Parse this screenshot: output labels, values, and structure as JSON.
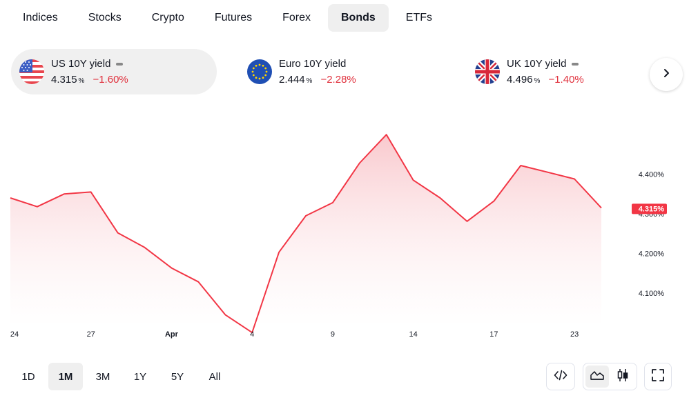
{
  "tabs": [
    {
      "label": "Indices"
    },
    {
      "label": "Stocks"
    },
    {
      "label": "Crypto"
    },
    {
      "label": "Futures"
    },
    {
      "label": "Forex"
    },
    {
      "label": "Bonds",
      "active": true
    },
    {
      "label": "ETFs"
    }
  ],
  "quotes": [
    {
      "name": "US 10Y yield",
      "value": "4.315",
      "unit": "%",
      "change": "−1.60%",
      "flag": "us-flag-icon",
      "active": true
    },
    {
      "name": "Euro 10Y yield",
      "value": "2.444",
      "unit": "%",
      "change": "−2.28%",
      "flag": "eu-flag-icon"
    },
    {
      "name": "UK 10Y yield",
      "value": "4.496",
      "unit": "%",
      "change": "−1.40%",
      "flag": "uk-flag-icon"
    }
  ],
  "next_icon": "chevron-right-icon",
  "chart_data": {
    "type": "area",
    "series": [
      {
        "values": [
          4.34,
          4.318,
          4.35,
          4.355,
          4.252,
          4.215,
          4.163,
          4.128,
          4.045,
          4.0,
          4.203,
          4.295,
          4.328,
          4.428,
          4.5,
          4.385,
          4.34,
          4.281,
          4.332,
          4.422,
          4.405,
          4.388,
          4.315
        ]
      }
    ],
    "x_tick_labels": [
      "24",
      "27",
      "Apr",
      "4",
      "9",
      "14",
      "17",
      "23"
    ],
    "x_tick_index": [
      0,
      3,
      6,
      9,
      12,
      15,
      18,
      21
    ],
    "y_ticks": [
      4.1,
      4.2,
      4.3,
      4.4
    ],
    "y_tick_labels": [
      "4.100%",
      "4.200%",
      "4.300%",
      "4.400%"
    ],
    "ylim": [
      3.98,
      4.52
    ],
    "last_value_label": "4.315%",
    "colors": {
      "line": "#f23645",
      "fill_top": "#f7b7bd",
      "fill_bottom": "#ffffff",
      "tag": "#f23645"
    }
  },
  "ranges": [
    {
      "label": "1D"
    },
    {
      "label": "1M",
      "active": true
    },
    {
      "label": "3M"
    },
    {
      "label": "1Y"
    },
    {
      "label": "5Y"
    },
    {
      "label": "All"
    }
  ],
  "tools": {
    "embed": "code-icon",
    "area_style": "area-chart-icon",
    "candle_style": "candlestick-icon",
    "fullscreen": "fullscreen-icon"
  }
}
